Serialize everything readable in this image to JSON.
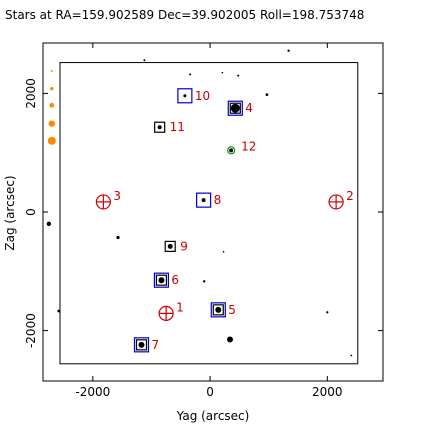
{
  "chart_data": {
    "type": "scatter",
    "title": "Stars at RA=159.902589 Dec=39.902005 Roll=198.753748",
    "xlabel": "Yag (arcsec)",
    "ylabel": "Zag (arcsec)",
    "xlim": [
      -2850,
      2950
    ],
    "ylim": [
      -2850,
      2850
    ],
    "x_ticks": [
      {
        "value": -2000,
        "label": "-2000"
      },
      {
        "value": 0,
        "label": "0"
      },
      {
        "value": 2000,
        "label": "2000"
      }
    ],
    "y_ticks": [
      {
        "value": -2000,
        "label": "-2000"
      },
      {
        "value": 0,
        "label": "0"
      },
      {
        "value": 2000,
        "label": "2000"
      }
    ],
    "field_box": {
      "y_min": -2560,
      "y_max": 2520,
      "z_min": -2560,
      "z_max": 2520
    },
    "colors": {
      "guide": "#0000cc",
      "acq": "#000000",
      "fid": "#cc0000",
      "mon": "#009900",
      "mag_scale": "#ff8800",
      "star": "#000000"
    },
    "series": [
      {
        "marker": "blue-box",
        "points": [
          {
            "y": 430,
            "z": 1750,
            "id": "4"
          },
          {
            "y": 140,
            "z": -1650,
            "id": "5"
          },
          {
            "y": -830,
            "z": -1150,
            "id": "6"
          },
          {
            "y": -1170,
            "z": -2240,
            "id": "7"
          },
          {
            "y": -110,
            "z": 200,
            "id": "8"
          },
          {
            "y": -430,
            "z": 1960,
            "id": "10"
          }
        ]
      },
      {
        "marker": "black-box",
        "points": [
          {
            "y": 430,
            "z": 1750
          },
          {
            "y": 140,
            "z": -1650
          },
          {
            "y": -830,
            "z": -1150
          },
          {
            "y": -1170,
            "z": -2240
          },
          {
            "y": -680,
            "z": -580,
            "id": "9"
          },
          {
            "y": -860,
            "z": 1430,
            "id": "11"
          }
        ]
      },
      {
        "marker": "red-circle-cross",
        "points": [
          {
            "y": -750,
            "z": -1710,
            "id": "1"
          },
          {
            "y": 2150,
            "z": 170,
            "id": "2"
          },
          {
            "y": -1820,
            "z": 170,
            "id": "3"
          }
        ]
      },
      {
        "marker": "green-circle",
        "points": [
          {
            "y": 360,
            "z": 1040,
            "id": "12"
          }
        ]
      },
      {
        "marker": "star",
        "points": [
          {
            "y": 430,
            "z": 1750,
            "m": 4.5
          },
          {
            "y": 140,
            "z": -1650,
            "m": 3
          },
          {
            "y": -830,
            "z": -1150,
            "m": 3
          },
          {
            "y": -1170,
            "z": -2240,
            "m": 3
          },
          {
            "y": -110,
            "z": 200,
            "m": 2
          },
          {
            "y": -680,
            "z": -580,
            "m": 2.5
          },
          {
            "y": -860,
            "z": 1430,
            "m": 2
          },
          {
            "y": -430,
            "z": 1960,
            "m": 1.5
          },
          {
            "y": 360,
            "z": 1040,
            "m": 2
          },
          {
            "y": 340,
            "z": -2150,
            "m": 3
          },
          {
            "y": -2750,
            "z": -200,
            "m": 2.2
          },
          {
            "y": -1570,
            "z": -430,
            "m": 1.6
          },
          {
            "y": -2580,
            "z": -1670,
            "m": 1.4
          },
          {
            "y": -100,
            "z": -1170,
            "m": 1.2
          },
          {
            "y": 970,
            "z": 1980,
            "m": 1.4
          },
          {
            "y": 1340,
            "z": 2720,
            "m": 1.2
          },
          {
            "y": 480,
            "z": 2300,
            "m": 1
          },
          {
            "y": -1120,
            "z": 2560,
            "m": 1
          },
          {
            "y": -340,
            "z": 2320,
            "m": 1
          },
          {
            "y": 210,
            "z": 2350,
            "m": 0.8
          },
          {
            "y": 2000,
            "z": -1690,
            "m": 1.1
          },
          {
            "y": 2410,
            "z": -2420,
            "m": 0.9
          },
          {
            "y": 230,
            "z": -670,
            "m": 0.8
          }
        ]
      },
      {
        "marker": "mag-scale",
        "points": [
          {
            "y": -2700,
            "z": 2380,
            "m": 1
          },
          {
            "y": -2700,
            "z": 2080,
            "m": 1.7
          },
          {
            "y": -2700,
            "z": 1800,
            "m": 2.4
          },
          {
            "y": -2700,
            "z": 1490,
            "m": 3.2
          },
          {
            "y": -2700,
            "z": 1200,
            "m": 4
          }
        ]
      }
    ]
  }
}
